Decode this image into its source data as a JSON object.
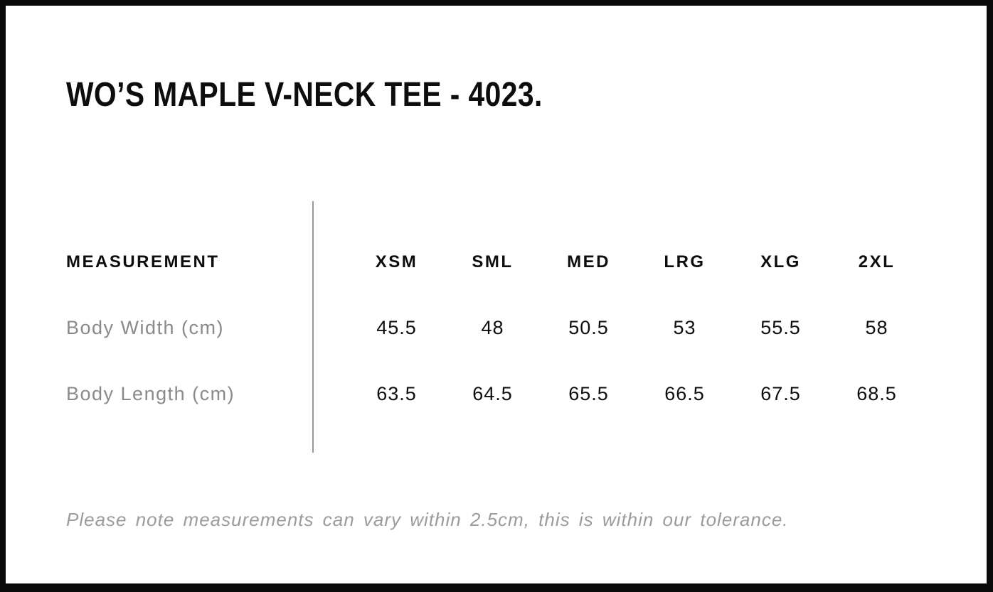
{
  "page": {
    "title": "WO’S MAPLE V-NECK TEE - 4023.",
    "note": "Please note measurements can vary within 2.5cm, this is within our tolerance."
  },
  "size_chart": {
    "measurement_header": "MEASUREMENT",
    "size_headers": [
      "XSM",
      "SML",
      "MED",
      "LRG",
      "XLG",
      "2XL"
    ],
    "rows": [
      {
        "label": "Body Width (cm)",
        "values": [
          "45.5",
          "48",
          "50.5",
          "53",
          "55.5",
          "58"
        ]
      },
      {
        "label": "Body Length (cm)",
        "values": [
          "63.5",
          "64.5",
          "65.5",
          "66.5",
          "67.5",
          "68.5"
        ]
      }
    ]
  },
  "colors": {
    "frame": "#0a0a0a",
    "text_primary": "#0d0d0d",
    "label_muted": "#8a8a8a",
    "note_muted": "#9b9b9b",
    "divider": "#999999"
  }
}
